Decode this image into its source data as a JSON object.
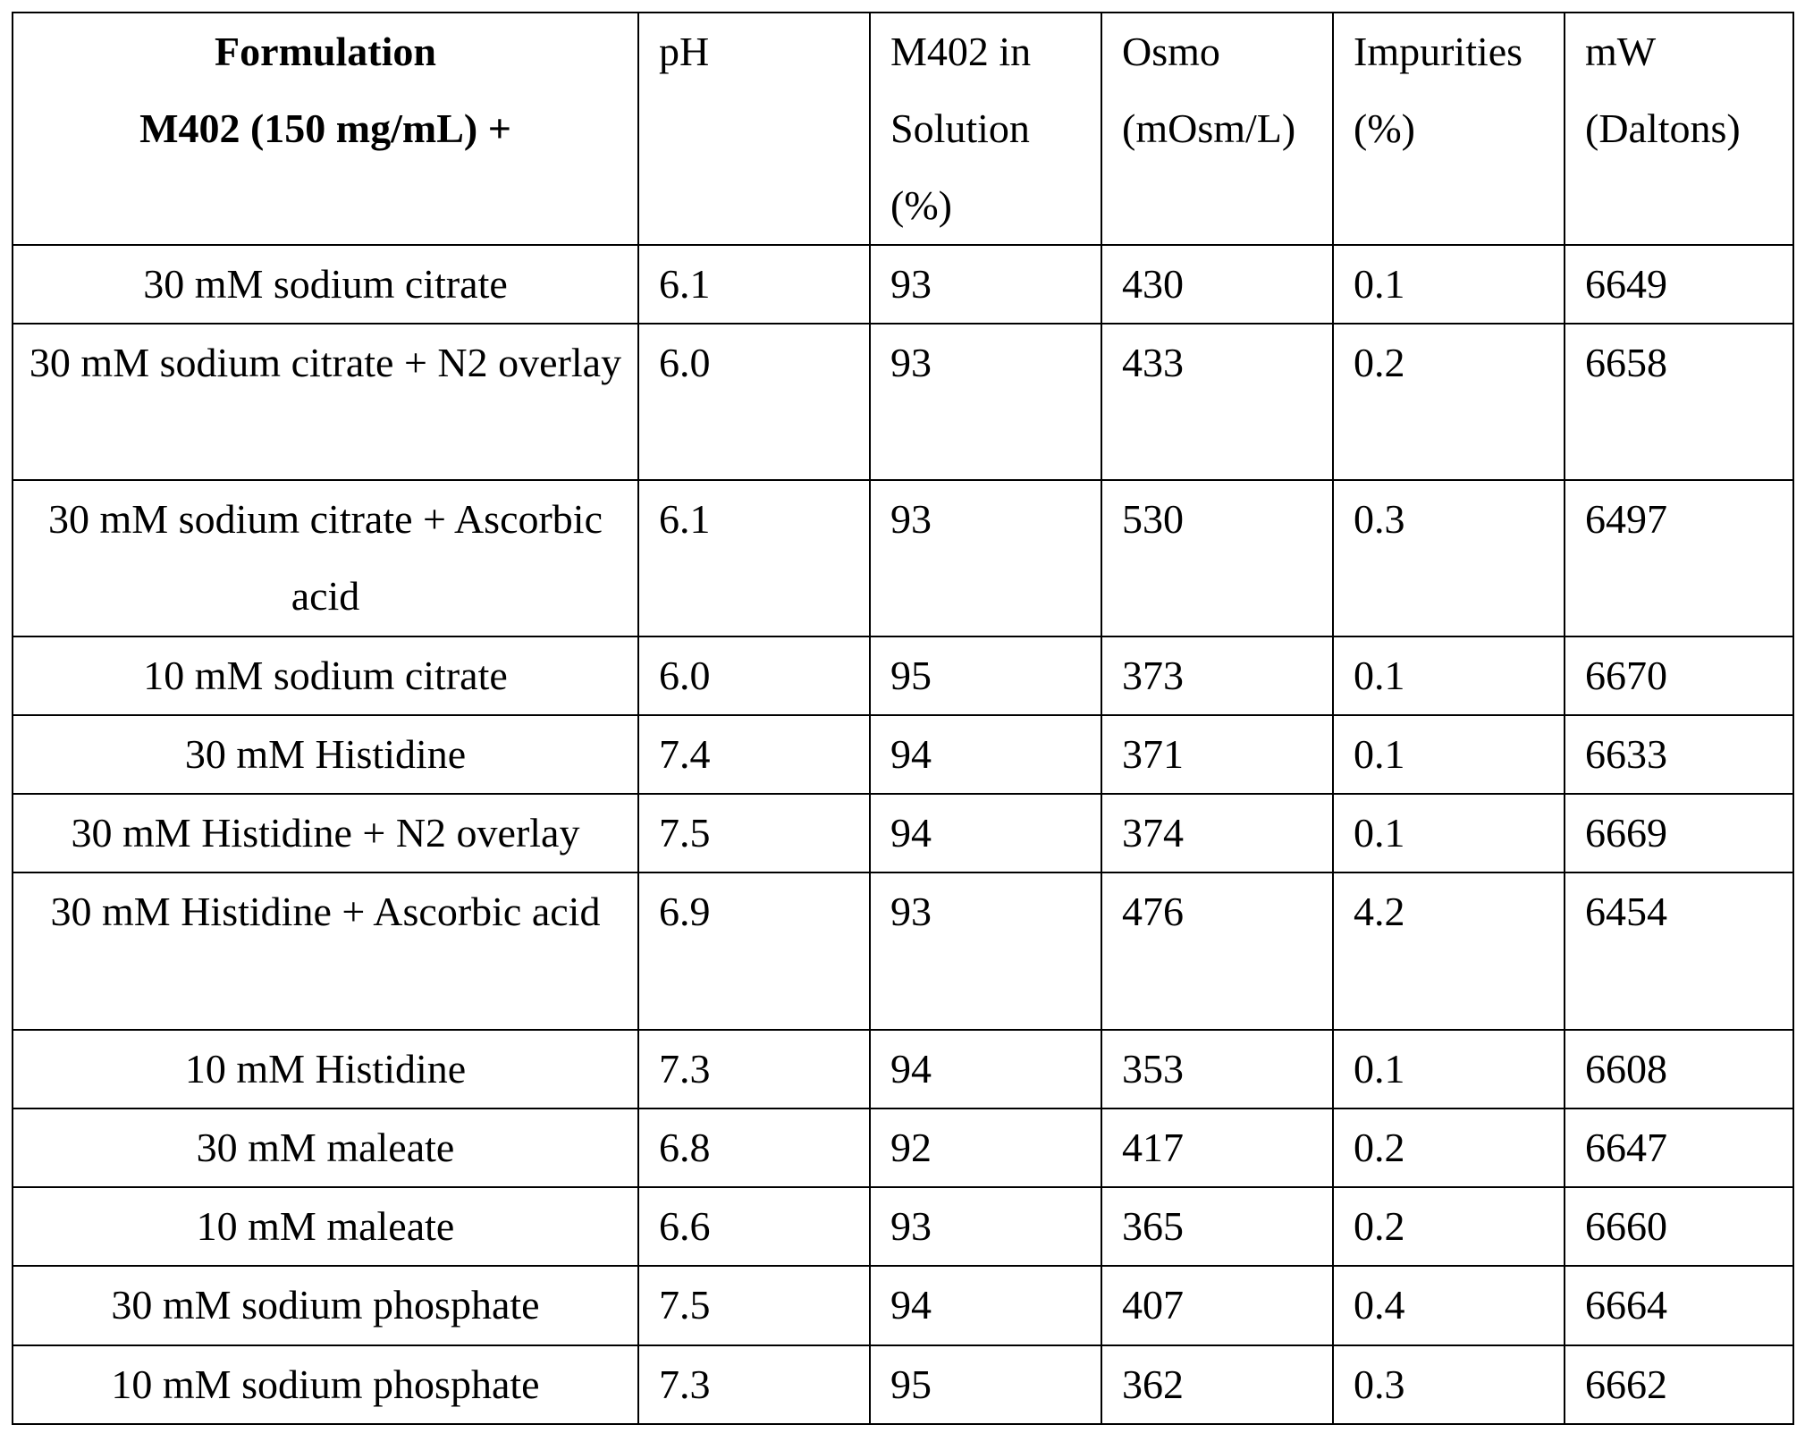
{
  "table": {
    "header": [
      [
        "Formulation",
        "M402 (150 mg/mL) +"
      ],
      [
        "pH"
      ],
      [
        "M402 in",
        "Solution",
        "(%)"
      ],
      [
        "Osmo",
        "(mOsm/L)"
      ],
      [
        "Impurities",
        "(%)"
      ],
      [
        "mW",
        "(Daltons)"
      ]
    ],
    "rows": [
      [
        "30 mM sodium citrate",
        "6.1",
        "93",
        "430",
        "0.1",
        "6649"
      ],
      [
        "30 mM sodium citrate + N2 overlay",
        "6.0",
        "93",
        "433",
        "0.2",
        "6658"
      ],
      [
        "30 mM sodium citrate + Ascorbic acid",
        "6.1",
        "93",
        "530",
        "0.3",
        "6497"
      ],
      [
        "10 mM sodium citrate",
        "6.0",
        "95",
        "373",
        "0.1",
        "6670"
      ],
      [
        "30 mM Histidine",
        "7.4",
        "94",
        "371",
        "0.1",
        "6633"
      ],
      [
        "30 mM Histidine + N2 overlay",
        "7.5",
        "94",
        "374",
        "0.1",
        "6669"
      ],
      [
        "30 mM Histidine + Ascorbic acid",
        "6.9",
        "93",
        "476",
        "4.2",
        "6454"
      ],
      [
        "10 mM Histidine",
        "7.3",
        "94",
        "353",
        "0.1",
        "6608"
      ],
      [
        "30 mM maleate",
        "6.8",
        "92",
        "417",
        "0.2",
        "6647"
      ],
      [
        "10 mM maleate",
        "6.6",
        "93",
        "365",
        "0.2",
        "6660"
      ],
      [
        "30 mM sodium phosphate",
        "7.5",
        "94",
        "407",
        "0.4",
        "6664"
      ],
      [
        "10 mM sodium phosphate",
        "7.3",
        "95",
        "362",
        "0.3",
        "6662"
      ]
    ]
  }
}
